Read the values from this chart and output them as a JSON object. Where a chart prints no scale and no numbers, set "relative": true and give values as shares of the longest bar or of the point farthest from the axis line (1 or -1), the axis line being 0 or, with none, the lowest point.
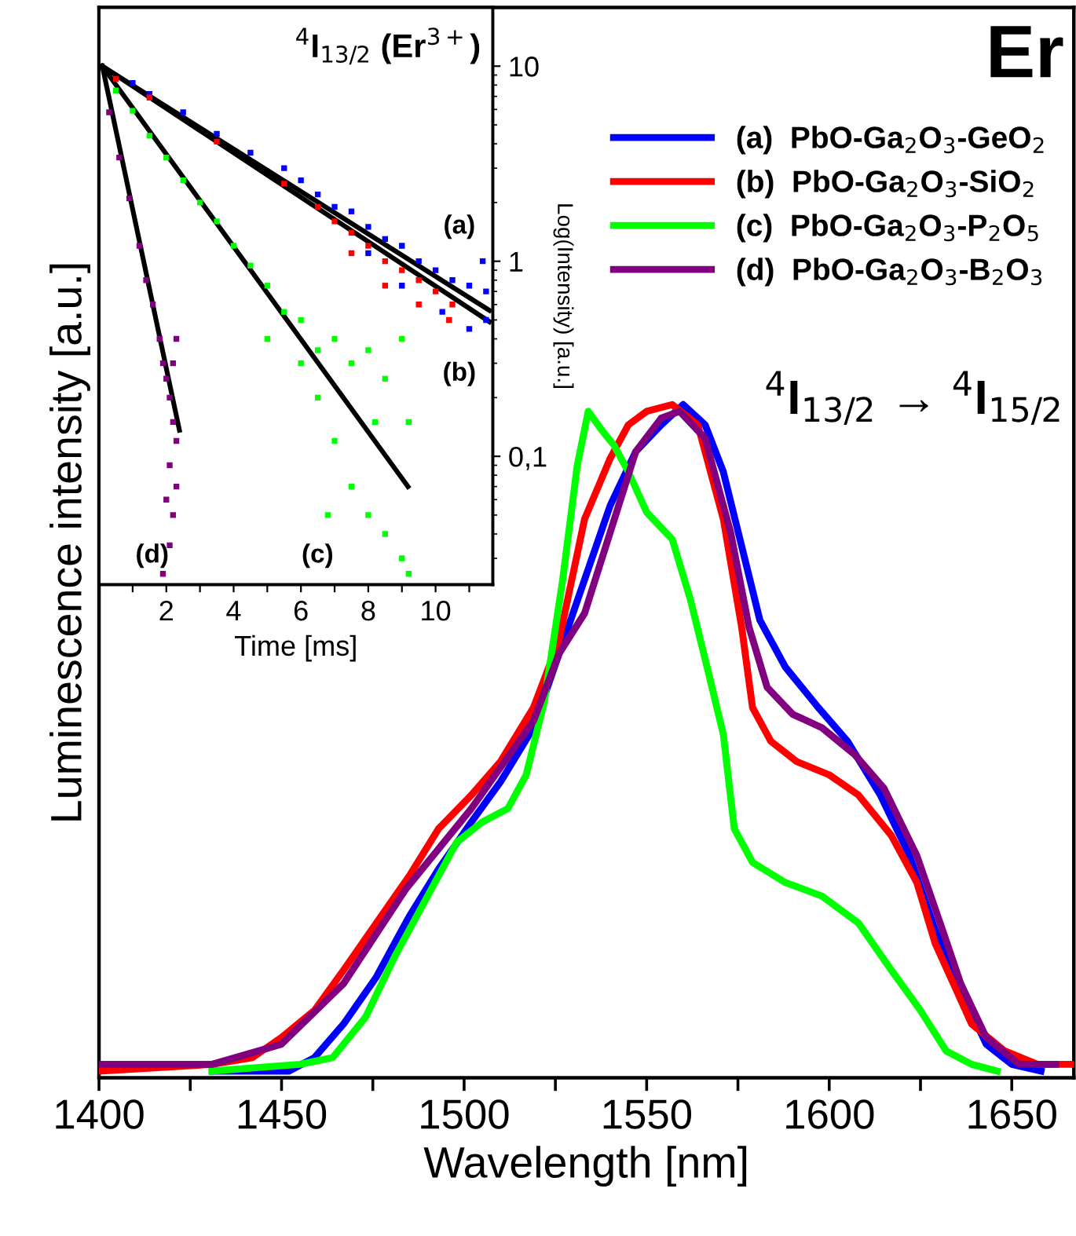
{
  "chart_data": [
    {
      "type": "line",
      "relative": true,
      "xlabel": "Wavelength [nm]",
      "ylabel": "Luminescence intensity [a.u.]",
      "xlim": [
        1400,
        1667
      ],
      "xticks": [
        1400,
        {
          "value": 1425,
          "label": null
        },
        1450,
        {
          "value": 1475,
          "label": null
        },
        1500,
        {
          "value": 1525,
          "label": null
        },
        1550,
        {
          "value": 1575,
          "label": null
        },
        1600,
        {
          "value": 1625,
          "label": null
        },
        1650
      ],
      "legend": "top right",
      "tick_labels": "x",
      "annotations": [
        "Er",
        "$^{4}$I$_{13/2}$ → $^{4}$I$_{15/2}$"
      ],
      "series": [
        {
          "name": "(a)  PbO-Ga$_{2}$O$_{3}$-GeO$_{2}$",
          "color": "#0000ff",
          "x": [
            1431,
            1452,
            1459,
            1467,
            1476,
            1485,
            1493,
            1502,
            1510,
            1519,
            1526,
            1533,
            1540,
            1547,
            1554,
            1560,
            1566,
            1571,
            1576,
            1581,
            1588,
            1597,
            1605,
            1614,
            1622,
            1629,
            1636,
            1643,
            1650,
            1658
          ],
          "values": [
            0.01,
            0.01,
            0.03,
            0.08,
            0.15,
            0.24,
            0.31,
            0.38,
            0.44,
            0.52,
            0.63,
            0.74,
            0.85,
            0.93,
            0.97,
            1.0,
            0.97,
            0.9,
            0.79,
            0.68,
            0.61,
            0.55,
            0.5,
            0.42,
            0.33,
            0.22,
            0.13,
            0.05,
            0.02,
            0.01
          ]
        },
        {
          "name": "(b)  PbO-Ga$_{2}$O$_{3}$-SiO$_{2}$",
          "color": "#ff0000",
          "x": [
            1400,
            1431,
            1442,
            1450,
            1459,
            1467,
            1476,
            1485,
            1493,
            1502,
            1510,
            1519,
            1526,
            1533,
            1540,
            1545,
            1550,
            1557,
            1564,
            1571,
            1576,
            1579,
            1584,
            1591,
            1600,
            1608,
            1617,
            1624,
            1629,
            1634,
            1639,
            1648,
            1657,
            1667
          ],
          "values": [
            0.01,
            0.02,
            0.03,
            0.06,
            0.1,
            0.16,
            0.23,
            0.3,
            0.37,
            0.42,
            0.47,
            0.55,
            0.65,
            0.83,
            0.92,
            0.97,
            0.99,
            1.0,
            0.97,
            0.83,
            0.67,
            0.55,
            0.5,
            0.47,
            0.45,
            0.42,
            0.36,
            0.29,
            0.2,
            0.14,
            0.08,
            0.04,
            0.02,
            0.02
          ]
        },
        {
          "name": "(c)  PbO-Ga$_{2}$O$_{3}$-P$_{2}$O$_{5}$",
          "color": "#00ff00",
          "x": [
            1431,
            1455,
            1464,
            1473,
            1481,
            1490,
            1498,
            1505,
            1512,
            1517,
            1522,
            1527,
            1531,
            1534,
            1538,
            1541,
            1545,
            1550,
            1557,
            1562,
            1567,
            1571,
            1574,
            1579,
            1588,
            1598,
            1608,
            1617,
            1625,
            1632,
            1639,
            1646
          ],
          "values": [
            0.01,
            0.02,
            0.03,
            0.09,
            0.18,
            0.27,
            0.35,
            0.38,
            0.4,
            0.45,
            0.56,
            0.74,
            0.91,
            0.99,
            0.96,
            0.94,
            0.9,
            0.84,
            0.8,
            0.71,
            0.6,
            0.51,
            0.37,
            0.32,
            0.29,
            0.27,
            0.23,
            0.16,
            0.1,
            0.04,
            0.02,
            0.01
          ]
        },
        {
          "name": "(d)  PbO-Ga$_{2}$O$_{3}$-B$_{2}$O$_{3}$",
          "color": "#800080",
          "x": [
            1400,
            1431,
            1450,
            1467,
            1484,
            1502,
            1519,
            1526,
            1533,
            1540,
            1547,
            1554,
            1559,
            1566,
            1573,
            1578,
            1583,
            1590,
            1598,
            1607,
            1615,
            1624,
            1631,
            1636,
            1643,
            1652,
            1662
          ],
          "values": [
            0.02,
            0.02,
            0.05,
            0.14,
            0.28,
            0.4,
            0.53,
            0.63,
            0.69,
            0.81,
            0.93,
            0.98,
            0.99,
            0.95,
            0.81,
            0.67,
            0.58,
            0.54,
            0.52,
            0.48,
            0.43,
            0.33,
            0.22,
            0.14,
            0.06,
            0.02,
            0.02
          ]
        }
      ]
    },
    {
      "type": "scatter",
      "title": "$^{4}$I$_{13/2}$ (Er$^{3+}$)",
      "xlabel": "Time [ms]",
      "y2label": "Log(Intensity) [a.u.]",
      "log": "y",
      "xlim": [
        0,
        11.7
      ],
      "ylim": [
        0.022,
        20
      ],
      "xticks": [
        {
          "value": 1,
          "label": null
        },
        2,
        {
          "value": 3,
          "label": null
        },
        4,
        {
          "value": 5,
          "label": null
        },
        6,
        {
          "value": 7,
          "label": null
        },
        8,
        {
          "value": 9,
          "label": null
        },
        10,
        {
          "value": 11,
          "label": null
        }
      ],
      "yticks": [
        {
          "value": 0.1,
          "label": "0,1"
        },
        1,
        10
      ],
      "annotations": [
        "(a)",
        "(b)",
        "(c)",
        "(d)"
      ],
      "series": [
        {
          "type": "scatter",
          "marker": "square",
          "color": "#0000ff",
          "x": [
            1.0,
            1.5,
            2.5,
            3.5,
            4.5,
            5.5,
            6,
            6.5,
            7,
            7.5,
            8,
            8.5,
            9,
            9.5,
            10,
            10.5,
            11,
            11.5,
            11,
            11.4,
            10.2,
            9,
            11.5,
            8
          ],
          "values": [
            8.2,
            7.2,
            5.8,
            4.5,
            3.6,
            3.0,
            2.6,
            2.2,
            1.9,
            1.8,
            1.5,
            1.3,
            1.2,
            1.0,
            0.9,
            0.8,
            0.75,
            0.7,
            0.45,
            1.0,
            0.55,
            0.75,
            0.5,
            1.1
          ]
        },
        {
          "type": "scatter",
          "marker": "square",
          "color": "#ff0000",
          "x": [
            0.5,
            1.5,
            3.5,
            5.5,
            6.5,
            7,
            7.5,
            8,
            8.5,
            9,
            9.5,
            10,
            10.5,
            8.5,
            9.5,
            10.4,
            7.5
          ],
          "values": [
            8.6,
            6.9,
            4.1,
            2.5,
            1.9,
            1.6,
            1.4,
            1.2,
            1.0,
            0.9,
            0.8,
            0.7,
            0.6,
            0.75,
            0.6,
            0.5,
            1.1
          ]
        },
        {
          "type": "scatter",
          "marker": "square",
          "color": "#00ff00",
          "x": [
            0.5,
            1,
            1.5,
            2,
            2.5,
            3,
            3.5,
            4,
            4.5,
            5,
            5.5,
            5,
            6,
            6,
            6.5,
            6.5,
            7,
            7,
            7.5,
            7.5,
            8,
            8,
            8.5,
            8.5,
            9,
            9,
            9.2,
            9.2,
            6.8,
            8.2
          ],
          "values": [
            7.5,
            5.9,
            4.4,
            3.4,
            2.6,
            2.0,
            1.6,
            1.2,
            0.95,
            0.75,
            0.55,
            0.4,
            0.5,
            0.3,
            0.35,
            0.2,
            0.4,
            0.12,
            0.3,
            0.07,
            0.35,
            0.05,
            0.25,
            0.04,
            0.4,
            0.03,
            0.15,
            0.025,
            0.05,
            0.15
          ]
        },
        {
          "type": "scatter",
          "marker": "square",
          "color": "#800080",
          "x": [
            0.3,
            0.6,
            0.9,
            1.2,
            1.4,
            1.6,
            1.8,
            1.9,
            2.0,
            2.1,
            2.2,
            2.3,
            2.0,
            2.1,
            2.2,
            2.3,
            2.1,
            2.2,
            2.3,
            1.9
          ],
          "values": [
            5.8,
            3.4,
            2.1,
            1.2,
            0.8,
            0.6,
            0.4,
            0.3,
            0.25,
            0.2,
            0.15,
            0.12,
            0.06,
            0.09,
            0.05,
            0.07,
            0.035,
            0.3,
            0.4,
            0.025
          ]
        },
        {
          "type": "line",
          "color": "#000000",
          "x": [
            0.1,
            11.6
          ],
          "values": [
            10,
            0.56
          ]
        },
        {
          "type": "line",
          "color": "#000000",
          "x": [
            0.1,
            11.6
          ],
          "values": [
            10,
            0.49
          ]
        },
        {
          "type": "line",
          "color": "#000000",
          "x": [
            0.1,
            9.18
          ],
          "values": [
            10,
            0.07
          ]
        },
        {
          "type": "line",
          "color": "#000000",
          "x": [
            0.1,
            2.39
          ],
          "values": [
            10,
            0.136
          ]
        }
      ]
    }
  ]
}
